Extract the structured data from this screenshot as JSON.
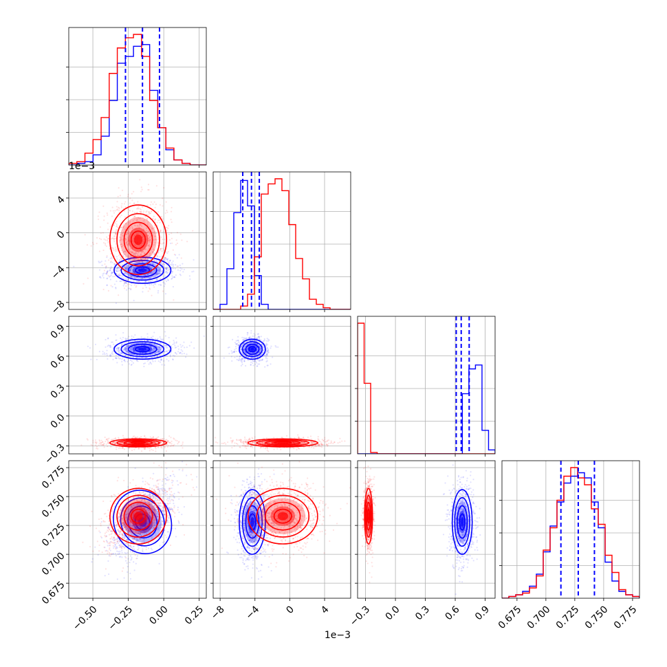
{
  "chart_data": {
    "type": "scatter",
    "variant": "corner-plot",
    "parameters": [
      {
        "ticks": [
          "−0.50",
          "−0.25",
          "0.00",
          "0.25"
        ],
        "tick_values": [
          -0.5,
          -0.25,
          0.0,
          0.25
        ],
        "range": [
          -0.67,
          0.3
        ],
        "offset_label": ""
      },
      {
        "ticks": [
          "−8",
          "−4",
          "0",
          "4"
        ],
        "tick_values": [
          -8,
          -4,
          0,
          4
        ],
        "range": [
          -8.8,
          7.0
        ],
        "offset_label": "1e−3"
      },
      {
        "ticks": [
          "−0.3",
          "0.0",
          "0.3",
          "0.6",
          "0.9"
        ],
        "tick_values": [
          -0.3,
          0.0,
          0.3,
          0.6,
          0.9
        ],
        "range": [
          -0.38,
          1.0
        ],
        "offset_label": ""
      },
      {
        "ticks": [
          "0.675",
          "0.700",
          "0.725",
          "0.750",
          "0.775"
        ],
        "tick_values": [
          0.675,
          0.7,
          0.725,
          0.75,
          0.775
        ],
        "range": [
          0.662,
          0.781
        ],
        "offset_label": ""
      }
    ],
    "series": [
      {
        "color": "#0000ff",
        "mean": [
          -0.15,
          -4.3,
          0.67,
          0.728
        ],
        "std": [
          0.1,
          0.75,
          0.05,
          0.014
        ],
        "corr_03": 0.6,
        "quantiles_shown": [
          [
            -0.27,
            -0.15,
            -0.03
          ],
          [
            -5.4,
            -4.4,
            -3.5
          ],
          [
            0.61,
            0.66,
            0.74
          ],
          [
            0.713,
            0.728,
            0.742
          ]
        ]
      },
      {
        "color": "#ff0000",
        "mean": [
          -0.18,
          -0.8,
          -0.27,
          0.733
        ],
        "std": [
          0.1,
          2.0,
          0.02,
          0.012
        ],
        "corr_03": 0.5
      }
    ],
    "diagonal_histograms": [
      {
        "series": [
          {
            "color": "#0000ff",
            "values": [
              0,
              1,
              2,
              6,
              17,
              38,
              60,
              64,
              70,
              71,
              44,
              22,
              9,
              3,
              1,
              0,
              0
            ]
          },
          {
            "color": "#ff0000",
            "values": [
              1,
              2,
              7,
              15,
              28,
              54,
              69,
              75,
              77,
              64,
              38,
              22,
              10,
              3,
              1,
              0,
              0
            ]
          }
        ]
      },
      {
        "series": [
          {
            "color": "#0000ff",
            "values": [
              0,
              3,
              24,
              57,
              76,
              61,
              20,
              3,
              0,
              0,
              0,
              0,
              0,
              0,
              0,
              0,
              0,
              0,
              0,
              0
            ]
          },
          {
            "color": "#ff0000",
            "values": [
              0,
              0,
              0,
              0,
              2,
              9,
              31,
              68,
              74,
              77,
              70,
              50,
              30,
              18,
              6,
              3,
              1,
              0,
              0,
              0
            ]
          }
        ]
      },
      {
        "series": [
          {
            "color": "#0000ff",
            "values": [
              0,
              0,
              0,
              0,
              0,
              0,
              0,
              0,
              0,
              0,
              0,
              0,
              0,
              0,
              0,
              0,
              46,
              65,
              68,
              18,
              3
            ]
          },
          {
            "color": "#ff0000",
            "values": [
              100,
              54,
              1,
              0,
              0,
              0,
              0,
              0,
              0,
              0,
              0,
              0,
              0,
              0,
              0,
              0,
              0,
              0,
              0,
              0,
              0
            ]
          }
        ]
      },
      {
        "series": [
          {
            "color": "#0000ff",
            "values": [
              0,
              1,
              2,
              4,
              7,
              14,
              27,
              42,
              56,
              67,
              71,
              73,
              70,
              56,
              41,
              21,
              10,
              4,
              2,
              1
            ]
          },
          {
            "color": "#ff0000",
            "values": [
              0,
              1,
              2,
              3,
              6,
              13,
              28,
              41,
              57,
              71,
              76,
              70,
              66,
              52,
              43,
              25,
              15,
              5,
              2,
              1
            ]
          }
        ]
      }
    ],
    "grid": true
  }
}
